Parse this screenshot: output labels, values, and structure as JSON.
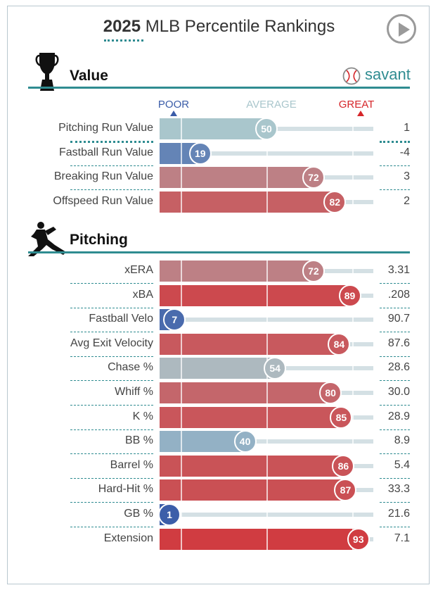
{
  "header": {
    "title_year": "2025",
    "title_rest": " MLB Percentile Rankings",
    "play_icon": "play-circle-icon"
  },
  "brand": {
    "name": "savant",
    "icon": "baseball-icon"
  },
  "scale": {
    "poor": "POOR",
    "average": "AVERAGE",
    "great": "GREAT"
  },
  "sections": [
    {
      "title": "Value",
      "icon": "trophy-icon"
    },
    {
      "title": "Pitching",
      "icon": "pitcher-icon"
    }
  ],
  "colors": {
    "accent": "#2f8c91",
    "poor": "#3a5ca8",
    "average": "#a9c6cc",
    "great": "#d6262a",
    "track": "#d4e0e4"
  },
  "chart_data": {
    "type": "bar",
    "orientation": "horizontal",
    "xlim": [
      0,
      100
    ],
    "groups": [
      {
        "section": "Value",
        "rows": [
          {
            "label": "Pitching Run Value",
            "percentile": 50,
            "value": "1"
          },
          {
            "label": "Fastball Run Value",
            "percentile": 19,
            "value": "-4"
          },
          {
            "label": "Breaking Run Value",
            "percentile": 72,
            "value": "3"
          },
          {
            "label": "Offspeed Run Value",
            "percentile": 82,
            "value": "2"
          }
        ]
      },
      {
        "section": "Pitching",
        "rows": [
          {
            "label": "xERA",
            "percentile": 72,
            "value": "3.31"
          },
          {
            "label": "xBA",
            "percentile": 89,
            "value": ".208"
          },
          {
            "label": "Fastball Velo",
            "percentile": 7,
            "value": "90.7"
          },
          {
            "label": "Avg Exit Velocity",
            "percentile": 84,
            "value": "87.6"
          },
          {
            "label": "Chase %",
            "percentile": 54,
            "value": "28.6"
          },
          {
            "label": "Whiff %",
            "percentile": 80,
            "value": "30.0"
          },
          {
            "label": "K %",
            "percentile": 85,
            "value": "28.9"
          },
          {
            "label": "BB %",
            "percentile": 40,
            "value": "8.9"
          },
          {
            "label": "Barrel %",
            "percentile": 86,
            "value": "5.4"
          },
          {
            "label": "Hard-Hit %",
            "percentile": 87,
            "value": "33.3"
          },
          {
            "label": "GB %",
            "percentile": 1,
            "value": "21.6"
          },
          {
            "label": "Extension",
            "percentile": 93,
            "value": "7.1"
          }
        ]
      }
    ]
  }
}
